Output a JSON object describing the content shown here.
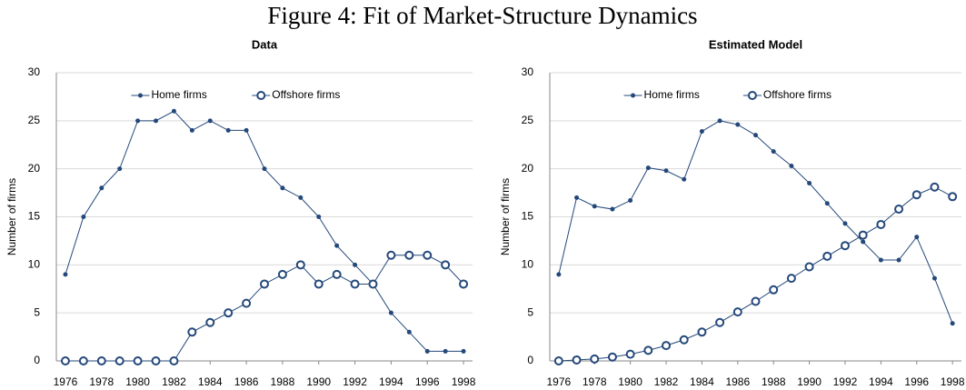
{
  "title": "Figure 4: Fit of Market-Structure Dynamics",
  "chart_data": [
    {
      "type": "line",
      "title": "Data",
      "ylabel": "Number of firms",
      "x": [
        1976,
        1977,
        1978,
        1979,
        1980,
        1981,
        1982,
        1983,
        1984,
        1985,
        1986,
        1987,
        1988,
        1989,
        1990,
        1991,
        1992,
        1993,
        1994,
        1995,
        1996,
        1997,
        1998
      ],
      "xlim": [
        1975.5,
        1998.5
      ],
      "xticks": [
        1976,
        1978,
        1980,
        1982,
        1984,
        1986,
        1988,
        1990,
        1992,
        1994,
        1996,
        1998
      ],
      "ylim": [
        0,
        30
      ],
      "yticks": [
        0,
        5,
        10,
        15,
        20,
        25,
        30
      ],
      "grid": true,
      "legend": "top",
      "series": [
        {
          "name": "Home firms",
          "color": "#24487a",
          "marker": "filled",
          "values": [
            9,
            15,
            18,
            20,
            25,
            25,
            26,
            24,
            25,
            24,
            24,
            20,
            18,
            17,
            15,
            12,
            10,
            8,
            5,
            3,
            1,
            1,
            1
          ]
        },
        {
          "name": "Offshore firms",
          "color": "#24487a",
          "marker": "hollow",
          "values": [
            0,
            0,
            0,
            0,
            0,
            0,
            0,
            3,
            4,
            5,
            6,
            8,
            9,
            10,
            8,
            9,
            8,
            8,
            11,
            11,
            11,
            10,
            8
          ]
        }
      ]
    },
    {
      "type": "line",
      "title": "Estimated Model",
      "ylabel": "Number of firms",
      "x": [
        1976,
        1977,
        1978,
        1979,
        1980,
        1981,
        1982,
        1983,
        1984,
        1985,
        1986,
        1987,
        1988,
        1989,
        1990,
        1991,
        1992,
        1993,
        1994,
        1995,
        1996,
        1997,
        1998
      ],
      "xlim": [
        1975.5,
        1998.5
      ],
      "xticks": [
        1976,
        1978,
        1980,
        1982,
        1984,
        1986,
        1988,
        1990,
        1992,
        1994,
        1996,
        1998
      ],
      "ylim": [
        0,
        30
      ],
      "yticks": [
        0,
        5,
        10,
        15,
        20,
        25,
        30
      ],
      "grid": true,
      "legend": "top",
      "series": [
        {
          "name": "Home firms",
          "color": "#24487a",
          "marker": "filled",
          "values": [
            9,
            17,
            16.1,
            15.8,
            16.7,
            20.1,
            19.8,
            18.9,
            23.9,
            25,
            24.6,
            23.5,
            21.8,
            20.3,
            18.5,
            16.4,
            14.3,
            12.4,
            10.5,
            10.5,
            12.9,
            8.6,
            3.9
          ]
        },
        {
          "name": "Offshore firms",
          "color": "#24487a",
          "marker": "hollow",
          "values": [
            0,
            0.1,
            0.2,
            0.4,
            0.7,
            1.1,
            1.6,
            2.2,
            3.0,
            4.0,
            5.1,
            6.2,
            7.4,
            8.6,
            9.8,
            10.9,
            12.0,
            13.1,
            14.2,
            15.8,
            17.3,
            18.1,
            17.1
          ]
        }
      ]
    }
  ]
}
